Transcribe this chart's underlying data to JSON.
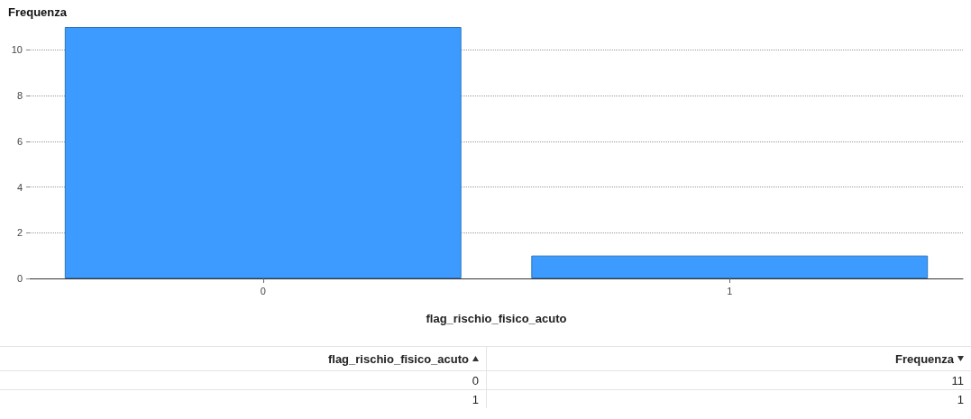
{
  "chart_data": {
    "type": "bar",
    "xlabel": "flag_rischio_fisico_acuto",
    "ylabel": "Frequenza",
    "categories": [
      "0",
      "1"
    ],
    "values": [
      11,
      1
    ],
    "color": "#3d9bff",
    "ylim": [
      0,
      11
    ],
    "yticks": [
      0,
      2,
      4,
      6,
      8,
      10
    ],
    "grid": "y",
    "annotations": [
      "0",
      "11",
      "1",
      "1"
    ]
  }
}
